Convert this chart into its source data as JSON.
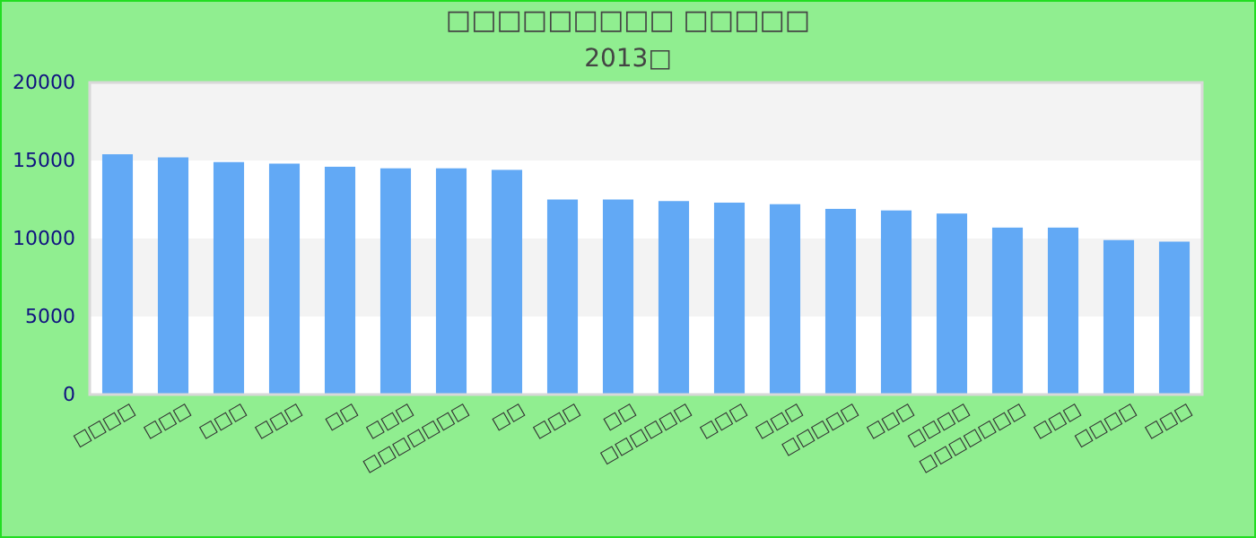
{
  "chart_data": {
    "type": "bar",
    "title": "□□□□□□□□□ □□□□□",
    "subtitle": "2013□",
    "categories": [
      "□□□□",
      "□□□",
      "□□□",
      "□□□",
      "□□",
      "□□□",
      "□□□□□□□",
      "□□",
      "□□□",
      "□□",
      "□□□□□□",
      "□□□",
      "□□□",
      "□□□□□",
      "□□□",
      "□□□□",
      "□□□□□□□",
      "□□□",
      "□□□□",
      "□□□"
    ],
    "values": [
      15400,
      15200,
      14900,
      14800,
      14600,
      14500,
      14500,
      14400,
      12500,
      12500,
      12400,
      12300,
      12200,
      11900,
      11800,
      11600,
      10700,
      10700,
      9900,
      9800
    ],
    "color": "#62a9f5",
    "ylim": [
      0,
      20000
    ],
    "yticks": [
      0,
      5000,
      10000,
      15000,
      20000
    ]
  }
}
